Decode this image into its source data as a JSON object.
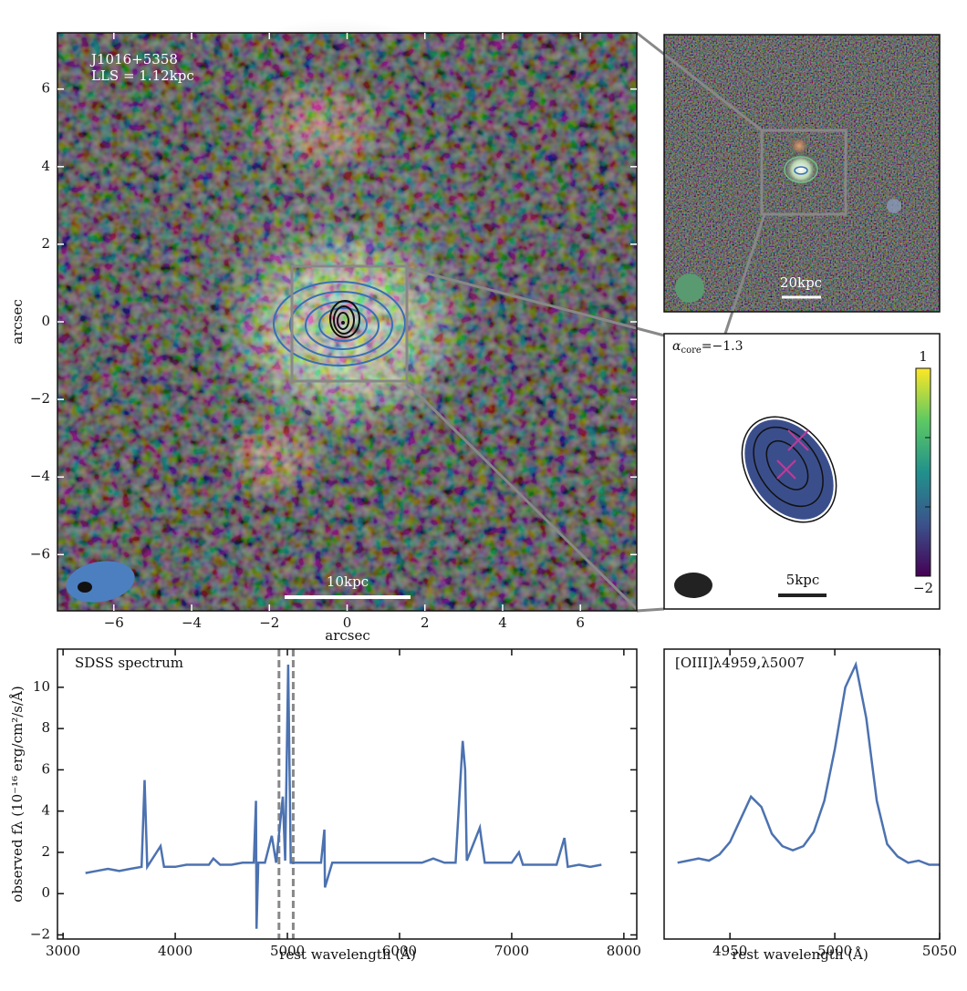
{
  "chart_data": [
    {
      "type": "image",
      "annotations": [
        "J1016+5358",
        "LLS = 1.12kpc"
      ],
      "scalebar": "10kpc",
      "xlabel": "arcsec",
      "ylabel": "arcsec",
      "xlim": [
        -7.45,
        7.45
      ],
      "ylim": [
        -7.45,
        7.45
      ],
      "xticks": [
        {
          "value": -6,
          "label": "−6"
        },
        {
          "value": -4,
          "label": "−4"
        },
        {
          "value": -2,
          "label": "−2"
        },
        0,
        2,
        4,
        6
      ],
      "yticks": [
        {
          "value": -6,
          "label": "−6"
        },
        {
          "value": -4,
          "label": "−4"
        },
        {
          "value": -2,
          "label": "−2"
        },
        0,
        2,
        4,
        6
      ]
    },
    {
      "type": "image",
      "scalebar": "20kpc"
    },
    {
      "type": "image",
      "annotation": {
        "symbol": "α",
        "subscript": "core",
        "text": "=−1.3"
      },
      "scalebar": "5kpc",
      "colorbar": {
        "lim": [
          -2,
          1
        ],
        "ticks": [
          {
            "value": -2,
            "label": "−2"
          },
          1
        ],
        "minor_ticks": [
          -1,
          0
        ]
      }
    },
    {
      "type": "line",
      "title": "SDSS spectrum",
      "xlabel": "rest wavelength (Å)",
      "ylabel": "observed fλ (10⁻¹⁶ erg/cm²/s/Å)",
      "color": "#4c72b0",
      "xlim": [
        2950,
        8115
      ],
      "ylim": [
        -2.2,
        11.85
      ],
      "xticks": [
        3000,
        4000,
        5000,
        6000,
        7000,
        8000
      ],
      "yticks": [
        {
          "value": -2,
          "label": "−2"
        },
        0,
        2,
        4,
        6,
        8,
        10
      ],
      "vlines": [
        4925,
        5052
      ],
      "x": [
        3200,
        3300,
        3400,
        3500,
        3600,
        3700,
        3727,
        3750,
        3869,
        3900,
        4000,
        4100,
        4200,
        4300,
        4340,
        4400,
        4500,
        4600,
        4700,
        4720,
        4725,
        4740,
        4800,
        4861,
        4900,
        4959,
        4980,
        5007,
        5030,
        5100,
        5200,
        5300,
        5330,
        5335,
        5400,
        5500,
        5600,
        5700,
        5800,
        5900,
        6000,
        6100,
        6200,
        6300,
        6400,
        6500,
        6563,
        6585,
        6600,
        6716,
        6731,
        6760,
        6800,
        6900,
        7000,
        7065,
        7100,
        7200,
        7300,
        7400,
        7470,
        7500,
        7600,
        7700,
        7800
      ],
      "values": [
        1.0,
        1.1,
        1.2,
        1.1,
        1.2,
        1.3,
        5.5,
        1.3,
        2.3,
        1.3,
        1.3,
        1.4,
        1.4,
        1.4,
        1.7,
        1.4,
        1.4,
        1.5,
        1.5,
        4.5,
        -1.7,
        1.5,
        1.5,
        2.8,
        1.5,
        4.7,
        1.6,
        11.1,
        1.5,
        1.5,
        1.5,
        1.5,
        3.1,
        0.3,
        1.5,
        1.5,
        1.5,
        1.5,
        1.5,
        1.5,
        1.5,
        1.5,
        1.5,
        1.7,
        1.5,
        1.5,
        7.4,
        6.0,
        1.6,
        3.2,
        2.6,
        1.5,
        1.5,
        1.5,
        1.5,
        2.0,
        1.4,
        1.4,
        1.4,
        1.4,
        2.7,
        1.3,
        1.4,
        1.3,
        1.4
      ]
    },
    {
      "type": "line",
      "title": "[OIII]λ4959,λ5007",
      "xlabel": "rest wavelength (Å)",
      "color": "#4c72b0",
      "xlim": [
        4918.6,
        5050
      ],
      "ylim": [
        -2.2,
        11.85
      ],
      "xticks": [
        4950,
        5000,
        5050
      ],
      "x": [
        4925,
        4930,
        4935,
        4940,
        4945,
        4950,
        4955,
        4960,
        4965,
        4970,
        4975,
        4980,
        4985,
        4990,
        4995,
        5000,
        5005,
        5010,
        5015,
        5020,
        5025,
        5030,
        5035,
        5040,
        5045,
        5050
      ],
      "values": [
        1.5,
        1.6,
        1.7,
        1.6,
        1.9,
        2.5,
        3.6,
        4.7,
        4.2,
        2.9,
        2.3,
        2.1,
        2.3,
        3.0,
        4.5,
        7.0,
        10.0,
        11.1,
        8.5,
        4.5,
        2.4,
        1.8,
        1.5,
        1.6,
        1.4,
        1.4
      ]
    }
  ]
}
